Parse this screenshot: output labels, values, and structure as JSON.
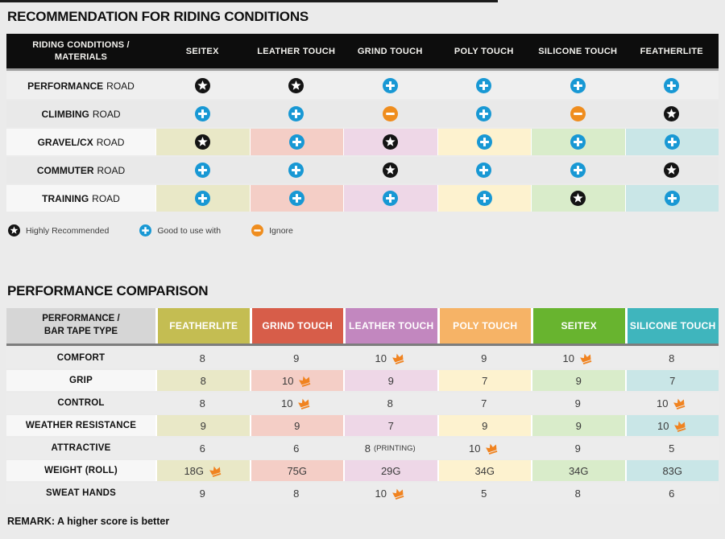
{
  "recommendation": {
    "title": "RECOMMENDATION FOR RIDING CONDITIONS",
    "header": {
      "label_lines": [
        "RIDING CONDITIONS /",
        "MATERIALS"
      ],
      "columns": [
        "SEITEX",
        "LEATHER TOUCH",
        "GRIND TOUCH",
        "POLY TOUCH",
        "SILICONE TOUCH",
        "FEATHERLITE"
      ]
    },
    "rows": [
      {
        "condition": "PERFORMANCE",
        "suffix": "ROAD",
        "colored": false,
        "cells": [
          "star",
          "star",
          "plus",
          "plus",
          "plus",
          "plus"
        ]
      },
      {
        "condition": "CLIMBING",
        "suffix": "ROAD",
        "colored": false,
        "cells": [
          "plus",
          "plus",
          "minus",
          "plus",
          "minus",
          "star"
        ]
      },
      {
        "condition": "GRAVEL/CX",
        "suffix": "ROAD",
        "colored": true,
        "cells": [
          "star",
          "plus",
          "star",
          "plus",
          "plus",
          "plus"
        ]
      },
      {
        "condition": "COMMUTER",
        "suffix": "ROAD",
        "colored": false,
        "cells": [
          "plus",
          "plus",
          "star",
          "plus",
          "plus",
          "star"
        ]
      },
      {
        "condition": "TRAINING",
        "suffix": "ROAD",
        "colored": true,
        "cells": [
          "plus",
          "plus",
          "plus",
          "plus",
          "star",
          "plus"
        ]
      }
    ],
    "legend": [
      {
        "icon": "star",
        "label": "Highly Recommended"
      },
      {
        "icon": "plus",
        "label": "Good to use with"
      },
      {
        "icon": "minus",
        "label": "Ignore"
      }
    ]
  },
  "performance": {
    "title": "PERFORMANCE COMPARISON",
    "header": {
      "label_lines": [
        "PERFORMANCE /",
        "BAR TAPE TYPE"
      ],
      "columns": [
        {
          "name": "FEATHERLITE",
          "color": "#c4bd52"
        },
        {
          "name": "GRIND TOUCH",
          "color": "#d75d49"
        },
        {
          "name": "LEATHER TOUCH",
          "color": "#c287bf"
        },
        {
          "name": "POLY TOUCH",
          "color": "#f6b366"
        },
        {
          "name": "SEITEX",
          "color": "#68b42f"
        },
        {
          "name": "SILICONE TOUCH",
          "color": "#3fb5bd"
        }
      ]
    },
    "rows": [
      {
        "metric": "COMFORT",
        "colored": false,
        "cells": [
          {
            "value": "8"
          },
          {
            "value": "9"
          },
          {
            "value": "10",
            "crown": true
          },
          {
            "value": "9"
          },
          {
            "value": "10",
            "crown": true
          },
          {
            "value": "8"
          }
        ]
      },
      {
        "metric": "GRIP",
        "colored": true,
        "cells": [
          {
            "value": "8"
          },
          {
            "value": "10",
            "crown": true
          },
          {
            "value": "9"
          },
          {
            "value": "7"
          },
          {
            "value": "9"
          },
          {
            "value": "7"
          }
        ]
      },
      {
        "metric": "CONTROL",
        "colored": false,
        "cells": [
          {
            "value": "8"
          },
          {
            "value": "10",
            "crown": true
          },
          {
            "value": "8"
          },
          {
            "value": "7"
          },
          {
            "value": "9"
          },
          {
            "value": "10",
            "crown": true
          }
        ]
      },
      {
        "metric": "WEATHER RESISTANCE",
        "colored": true,
        "cells": [
          {
            "value": "9"
          },
          {
            "value": "9"
          },
          {
            "value": "7"
          },
          {
            "value": "9"
          },
          {
            "value": "9"
          },
          {
            "value": "10",
            "crown": true
          }
        ]
      },
      {
        "metric": "ATTRACTIVE",
        "colored": false,
        "cells": [
          {
            "value": "6"
          },
          {
            "value": "6"
          },
          {
            "value": "8",
            "note": "(PRINTING)"
          },
          {
            "value": "10",
            "crown": true
          },
          {
            "value": "9"
          },
          {
            "value": "5"
          }
        ]
      },
      {
        "metric": "WEIGHT (ROLL)",
        "colored": true,
        "cells": [
          {
            "value": "18G",
            "crown": true
          },
          {
            "value": "75G"
          },
          {
            "value": "29G"
          },
          {
            "value": "34G"
          },
          {
            "value": "34G"
          },
          {
            "value": "83G"
          }
        ]
      },
      {
        "metric": "SWEAT HANDS",
        "colored": false,
        "cells": [
          {
            "value": "9"
          },
          {
            "value": "8"
          },
          {
            "value": "10",
            "crown": true
          },
          {
            "value": "5"
          },
          {
            "value": "8"
          },
          {
            "value": "6"
          }
        ]
      }
    ],
    "remark": "REMARK: A higher score is better"
  },
  "palette": {
    "icon_blue": "#1898d4",
    "icon_orange": "#ef8d1e",
    "icon_black": "#141414",
    "crown_orange": "#f08320",
    "pale_columns": [
      "#e9e8c7",
      "#f4cec6",
      "#eed7e7",
      "#fdf2cf",
      "#d9ecca",
      "#c9e6e7"
    ],
    "gray_row_light": "#efefef",
    "gray_row_dark": "#e9e9e9",
    "gray_row_t2": "#ececec",
    "colored_label_bg": "#f7f7f7"
  }
}
